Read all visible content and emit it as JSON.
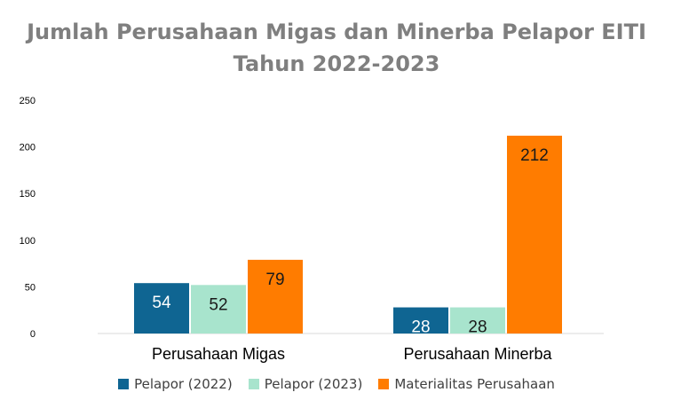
{
  "chart_data": {
    "type": "bar",
    "title_line1": "Jumlah Perusahaan Migas dan Minerba Pelapor EITI",
    "title_line2": "Tahun 2022-2023",
    "categories": [
      "Perusahaan Migas",
      "Perusahaan Minerba"
    ],
    "series": [
      {
        "name": "Pelapor (2022)",
        "values": [
          54,
          28
        ],
        "color": "#0f6592"
      },
      {
        "name": "Pelapor (2023)",
        "values": [
          52,
          28
        ],
        "color": "#a8e4cd"
      },
      {
        "name": "Materialitas Perusahaan",
        "values": [
          79,
          212
        ],
        "color": "#ff7c00"
      }
    ],
    "yticks": [
      "0",
      "50",
      "100",
      "150",
      "200",
      "250"
    ],
    "ylim": [
      0,
      250
    ],
    "grid": false,
    "legend_position": "bottom"
  }
}
